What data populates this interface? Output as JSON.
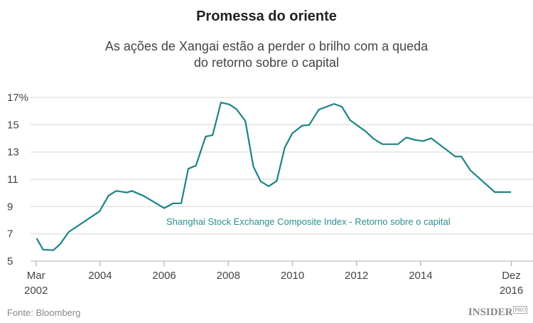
{
  "title": "Promessa do oriente",
  "subtitle_line1": "As ações de Xangai estão a perder o brilho com a queda",
  "subtitle_line2": "do retorno sobre o capital",
  "source": "Fonte: Bloomberg",
  "logo": "INSIDER PRO",
  "chart_data": {
    "type": "line",
    "title": "Promessa do oriente",
    "ylim": [
      5,
      17
    ],
    "xlim": [
      2002,
      2016.83
    ],
    "grid": true,
    "y_ticks": [
      {
        "value": 17,
        "label": "17%"
      },
      {
        "value": 15,
        "label": "15"
      },
      {
        "value": 13,
        "label": "13"
      },
      {
        "value": 11,
        "label": "11"
      },
      {
        "value": 9,
        "label": "9"
      },
      {
        "value": 7,
        "label": "7"
      },
      {
        "value": 5,
        "label": "5"
      }
    ],
    "x_ticks": [
      {
        "value": 2002,
        "label": "Mar",
        "label2": "2002"
      },
      {
        "value": 2004,
        "label": "2004"
      },
      {
        "value": 2006,
        "label": "2006"
      },
      {
        "value": 2008,
        "label": "2008"
      },
      {
        "value": 2010,
        "label": "2010"
      },
      {
        "value": 2012,
        "label": "2012"
      },
      {
        "value": 2014,
        "label": "2014"
      },
      {
        "value": 2016.83,
        "label": "Dez",
        "label2": "2016"
      }
    ],
    "series": [
      {
        "name": "Shanghai Stock Exchange Composite Index - Retorno sobre o capital",
        "color": "#1b8487",
        "x": [
          2002.02,
          2002.22,
          2002.54,
          2002.75,
          2003.02,
          2003.98,
          2004.26,
          2004.5,
          2004.84,
          2004.99,
          2005.35,
          2006.0,
          2006.27,
          2006.53,
          2006.75,
          2006.99,
          2007.29,
          2007.51,
          2007.77,
          2008.03,
          2008.25,
          2008.53,
          2008.78,
          2009.01,
          2009.26,
          2009.51,
          2009.76,
          2010.0,
          2010.3,
          2010.52,
          2010.82,
          2011.3,
          2011.54,
          2011.8,
          2012.29,
          2012.53,
          2012.81,
          2013.29,
          2013.55,
          2013.82,
          2014.08,
          2014.33,
          2015.08,
          2015.27,
          2015.55,
          2016.31,
          2016.82
        ],
        "y": [
          6.67,
          5.84,
          5.8,
          6.24,
          7.14,
          8.64,
          9.79,
          10.15,
          10.03,
          10.15,
          9.79,
          8.88,
          9.23,
          9.24,
          11.77,
          12.0,
          14.13,
          14.24,
          16.63,
          16.49,
          16.15,
          15.28,
          11.94,
          10.84,
          10.49,
          10.88,
          13.33,
          14.38,
          14.93,
          14.98,
          16.1,
          16.53,
          16.32,
          15.33,
          14.5,
          13.97,
          13.57,
          13.57,
          14.06,
          13.89,
          13.8,
          14.01,
          12.67,
          12.67,
          11.66,
          10.06,
          10.06
        ]
      }
    ]
  }
}
